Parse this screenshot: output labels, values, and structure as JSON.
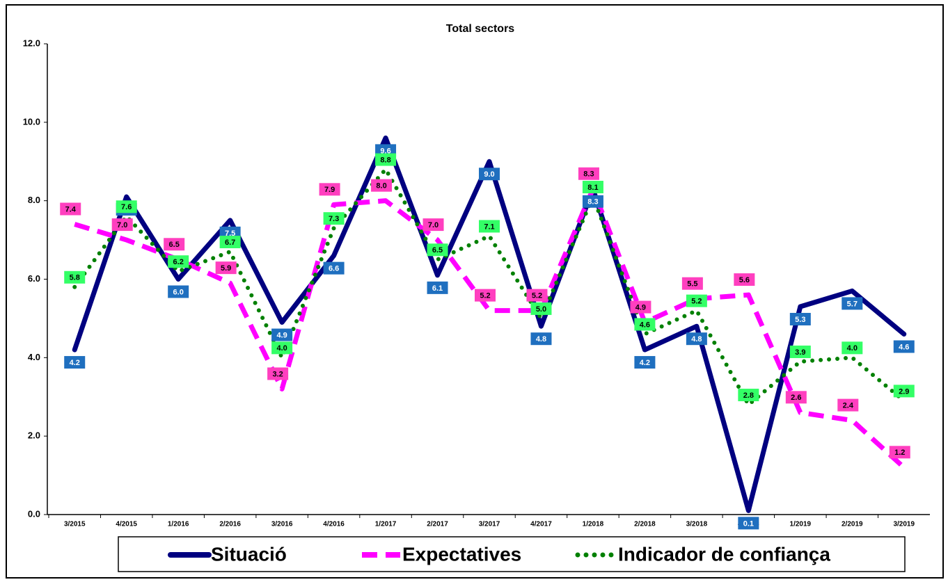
{
  "chart_data": {
    "type": "line",
    "title": "Total sectors",
    "categories": [
      "3/2015",
      "4/2015",
      "1/2016",
      "2/2016",
      "3/2016",
      "4/2016",
      "1/2017",
      "2/2017",
      "3/2017",
      "4/2017",
      "1/2018",
      "2/2018",
      "3/2018",
      "4/2018",
      "1/2019",
      "2/2019",
      "3/2019"
    ],
    "ylim": [
      0,
      12
    ],
    "yticks": [
      {
        "value": 0,
        "label": "0.0"
      },
      {
        "value": 2,
        "label": "2.0"
      },
      {
        "value": 4,
        "label": "4.0"
      },
      {
        "value": 6,
        "label": "6.0"
      },
      {
        "value": 8,
        "label": "8.0"
      },
      {
        "value": 10,
        "label": "10.0"
      },
      {
        "value": 12,
        "label": "12.0"
      }
    ],
    "grid": false,
    "series": [
      {
        "name": "Situació",
        "color": "#000080",
        "style": "solid",
        "values": [
          4.2,
          8.1,
          6.0,
          7.5,
          4.9,
          6.6,
          9.6,
          6.1,
          9.0,
          4.8,
          8.3,
          4.2,
          4.8,
          0.1,
          5.3,
          5.7,
          4.6
        ],
        "value_labels": [
          "4.2",
          "8.1",
          "6.0",
          "7.5",
          "4.9",
          "6.6",
          "9.6",
          "6.1",
          "9.0",
          "4.8",
          "8.3",
          "4.2",
          "4.8",
          "0.1",
          "5.3",
          "5.7",
          "4.6"
        ],
        "label_color": "#1f6fbf"
      },
      {
        "name": "Expectatives",
        "color": "#ff00ff",
        "style": "dashed",
        "values": [
          7.4,
          7.0,
          6.5,
          5.9,
          3.2,
          7.9,
          8.0,
          7.0,
          5.2,
          5.2,
          8.3,
          4.9,
          5.5,
          5.6,
          2.6,
          2.4,
          1.2
        ],
        "value_labels": [
          "7.4",
          "7.0",
          "6.5",
          "5.9",
          "3.2",
          "7.9",
          "8.0",
          "7.0",
          "5.2",
          "5.2",
          "8.3",
          "4.9",
          "5.5",
          "5.6",
          "2.6",
          "2.4",
          "1.2"
        ],
        "label_color": "#ff3fbf"
      },
      {
        "name": "Indicador de confiança",
        "color": "#008000",
        "style": "dotted",
        "values": [
          5.8,
          7.6,
          6.2,
          6.7,
          4.0,
          7.3,
          8.8,
          6.5,
          7.1,
          5.0,
          8.1,
          4.6,
          5.2,
          2.8,
          3.9,
          4.0,
          2.9
        ],
        "value_labels": [
          "5.8",
          "7.6",
          "6.2",
          "6.7",
          "4.0",
          "7.3",
          "8.8",
          "6.5",
          "7.1",
          "5.0",
          "8.1",
          "4.6",
          "5.2",
          "2.8",
          "3.9",
          "4.0",
          "2.9"
        ],
        "label_color": "#33ff66"
      }
    ]
  }
}
